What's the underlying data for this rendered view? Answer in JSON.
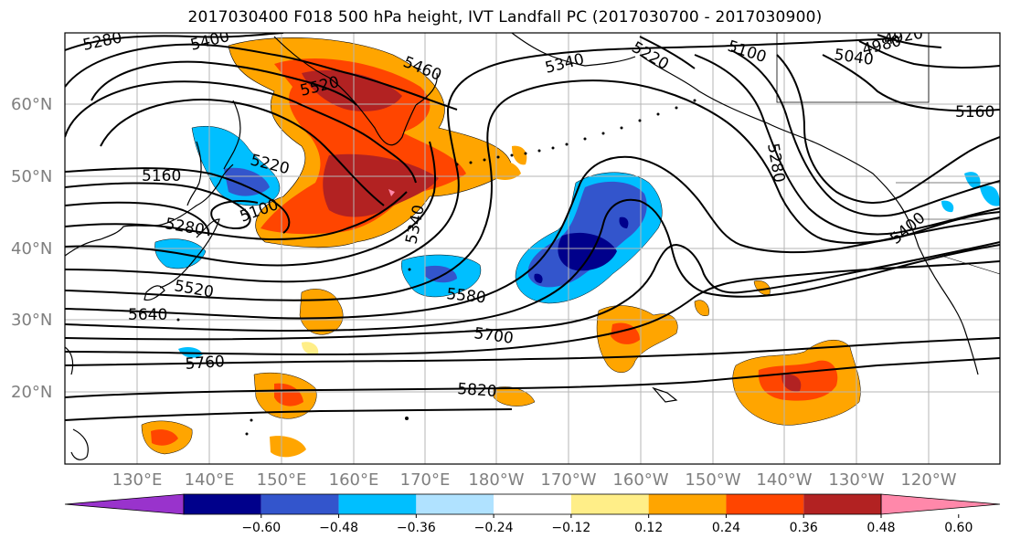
{
  "title": "2017030400 F018 500 hPa height, IVT Landfall PC (2017030700 - 2017030900)",
  "lat_labels": [
    "60°N",
    "50°N",
    "40°N",
    "30°N",
    "20°N"
  ],
  "lon_labels": [
    "130°E",
    "140°E",
    "150°E",
    "160°E",
    "170°E",
    "180°W",
    "170°W",
    "160°W",
    "150°W",
    "140°W",
    "130°W",
    "120°W"
  ],
  "contour_labels": [
    "5280",
    "5400",
    "5460",
    "5520",
    "5340",
    "5220",
    "5100",
    "4980",
    "4920",
    "5040",
    "5160",
    "5280",
    "5160",
    "5220",
    "5100",
    "5280",
    "5340",
    "5400",
    "5520",
    "5640",
    "5580",
    "5700",
    "5760",
    "5820"
  ],
  "colorbar": {
    "tick_labels": [
      "−0.60",
      "−0.48",
      "−0.36",
      "−0.24",
      "−0.12",
      "0.12",
      "0.24",
      "0.36",
      "0.48",
      "0.60"
    ],
    "colors": [
      "#9933cc",
      "#00008b",
      "#3355cc",
      "#00bfff",
      "#b0e2ff",
      "#ffffff",
      "#ffee88",
      "#ffa500",
      "#ff4500",
      "#b22222",
      "#ff88aa"
    ]
  }
}
